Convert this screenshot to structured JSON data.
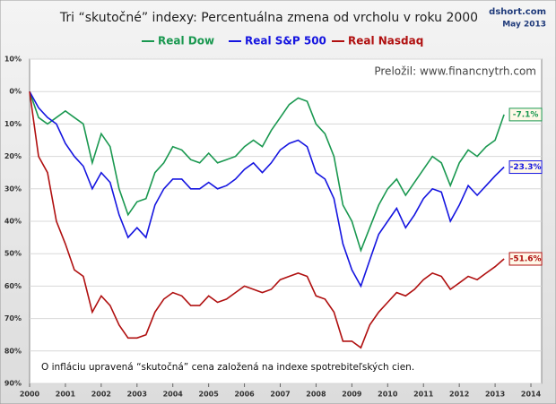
{
  "chart_data": {
    "type": "line",
    "title": "Tri “skutočné” indexy: Percentuálna zmena od vrcholu v roku 2000",
    "source": "dshort.com",
    "date": "May 2013",
    "translator": "Preložil: www.financnytrh.com",
    "note": "O infláciu upravená “skutočná” cena založená na indexe spotrebiteľských cien.",
    "x": [
      2000,
      2000.25,
      2000.5,
      2000.75,
      2001,
      2001.25,
      2001.5,
      2001.75,
      2002,
      2002.25,
      2002.5,
      2002.75,
      2003,
      2003.25,
      2003.5,
      2003.75,
      2004,
      2004.25,
      2004.5,
      2004.75,
      2005,
      2005.25,
      2005.5,
      2005.75,
      2006,
      2006.25,
      2006.5,
      2006.75,
      2007,
      2007.25,
      2007.5,
      2007.75,
      2008,
      2008.25,
      2008.5,
      2008.75,
      2009,
      2009.25,
      2009.5,
      2009.75,
      2010,
      2010.25,
      2010.5,
      2010.75,
      2011,
      2011.25,
      2011.5,
      2011.75,
      2012,
      2012.25,
      2012.5,
      2012.75,
      2013,
      2013.25
    ],
    "series": [
      {
        "name": "Real Dow",
        "color": "#1a9850",
        "values": [
          0,
          -8,
          -10,
          -8,
          -6,
          -8,
          -10,
          -22,
          -13,
          -17,
          -30,
          -38,
          -34,
          -33,
          -25,
          -22,
          -17,
          -18,
          -21,
          -22,
          -19,
          -22,
          -21,
          -20,
          -17,
          -15,
          -17,
          -12,
          -8,
          -4,
          -2,
          -3,
          -10,
          -13,
          -20,
          -35,
          -40,
          -49,
          -42,
          -35,
          -30,
          -27,
          -32,
          -28,
          -24,
          -20,
          -22,
          -29,
          -22,
          -18,
          -20,
          -17,
          -15,
          -7.1
        ],
        "value_labels": [
          null,
          null,
          null,
          null,
          null,
          null,
          null,
          null,
          null,
          null,
          null,
          null,
          null,
          null,
          null,
          null,
          null,
          null,
          null,
          null,
          null,
          null,
          null,
          null,
          null,
          null,
          null,
          null,
          null,
          null,
          null,
          null,
          null,
          null,
          null,
          null,
          null,
          null,
          null,
          null,
          null,
          null,
          null,
          null,
          null,
          null,
          null,
          null,
          null,
          null,
          null,
          null,
          null,
          "-7.1%"
        ]
      },
      {
        "name": "Real S&P 500",
        "color": "#1515e0",
        "values": [
          0,
          -5,
          -8,
          -10,
          -16,
          -20,
          -23,
          -30,
          -25,
          -28,
          -38,
          -45,
          -42,
          -45,
          -35,
          -30,
          -27,
          -27,
          -30,
          -30,
          -28,
          -30,
          -29,
          -27,
          -24,
          -22,
          -25,
          -22,
          -18,
          -16,
          -15,
          -17,
          -25,
          -27,
          -33,
          -47,
          -55,
          -60,
          -52,
          -44,
          -40,
          -36,
          -42,
          -38,
          -33,
          -30,
          -31,
          -40,
          -35,
          -29,
          -32,
          -29,
          -26,
          -23.3
        ],
        "value_labels": [
          null,
          null,
          null,
          null,
          null,
          null,
          null,
          null,
          null,
          null,
          null,
          null,
          null,
          null,
          null,
          null,
          null,
          null,
          null,
          null,
          null,
          null,
          null,
          null,
          null,
          null,
          null,
          null,
          null,
          null,
          null,
          null,
          null,
          null,
          null,
          null,
          null,
          null,
          null,
          null,
          null,
          null,
          null,
          null,
          null,
          null,
          null,
          null,
          null,
          null,
          null,
          null,
          null,
          "-23.3%"
        ]
      },
      {
        "name": "Real Nasdaq",
        "color": "#b01010",
        "values": [
          0,
          -20,
          -25,
          -40,
          -47,
          -55,
          -57,
          -68,
          -63,
          -66,
          -72,
          -76,
          -76,
          -75,
          -68,
          -64,
          -62,
          -63,
          -66,
          -66,
          -63,
          -65,
          -64,
          -62,
          -60,
          -61,
          -62,
          -61,
          -58,
          -57,
          -56,
          -57,
          -63,
          -64,
          -68,
          -77,
          -77,
          -79,
          -72,
          -68,
          -65,
          -62,
          -63,
          -61,
          -58,
          -56,
          -57,
          -61,
          -59,
          -57,
          -58,
          -56,
          -54,
          -51.6
        ],
        "value_labels": [
          null,
          null,
          null,
          null,
          null,
          null,
          null,
          null,
          null,
          null,
          null,
          null,
          null,
          null,
          null,
          null,
          null,
          null,
          null,
          null,
          null,
          null,
          null,
          null,
          null,
          null,
          null,
          null,
          null,
          null,
          null,
          null,
          null,
          null,
          null,
          null,
          null,
          null,
          null,
          null,
          null,
          null,
          null,
          null,
          null,
          null,
          null,
          null,
          null,
          null,
          null,
          null,
          null,
          "-51.6%"
        ]
      }
    ],
    "xlim": [
      2000,
      2014.3
    ],
    "xticks": [
      2000,
      2001,
      2002,
      2003,
      2004,
      2005,
      2006,
      2007,
      2008,
      2009,
      2010,
      2011,
      2012,
      2013,
      2014
    ],
    "ylim": [
      -90,
      10
    ],
    "yticks": [
      {
        "value": 10,
        "label": "10%"
      },
      {
        "value": 0,
        "label": "0%"
      },
      {
        "value": -10,
        "label": "10%"
      },
      {
        "value": -20,
        "label": "20%"
      },
      {
        "value": -30,
        "label": "30%"
      },
      {
        "value": -40,
        "label": "40%"
      },
      {
        "value": -50,
        "label": "50%"
      },
      {
        "value": -60,
        "label": "60%"
      },
      {
        "value": -70,
        "label": "70%"
      },
      {
        "value": -80,
        "label": "80%"
      },
      {
        "value": -90,
        "label": "90%"
      }
    ],
    "grid": true
  }
}
